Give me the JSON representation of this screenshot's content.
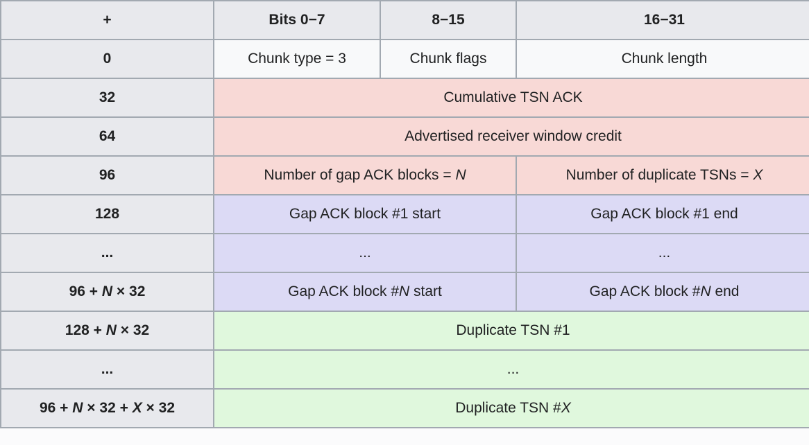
{
  "colors": {
    "border": "#a2a9b1",
    "header_bg": "#e8e9ed",
    "plain_bg": "#f8f9fa",
    "red_bg": "#f8d9d6",
    "purple_bg": "#dcdaf5",
    "green_bg": "#e0f8dd",
    "text": "#202122",
    "page_bg": "#fbfbfc"
  },
  "table": {
    "header": [
      "+",
      "Bits 0−7",
      "8−15",
      "16−31"
    ],
    "rows": [
      {
        "offset": [
          {
            "t": "0"
          }
        ],
        "cells": [
          {
            "span": 1,
            "bg": "plain",
            "segs": [
              {
                "t": "Chunk type = 3"
              }
            ]
          },
          {
            "span": 1,
            "bg": "plain",
            "segs": [
              {
                "t": "Chunk flags"
              }
            ]
          },
          {
            "span": 1,
            "bg": "plain",
            "segs": [
              {
                "t": "Chunk length"
              }
            ]
          }
        ]
      },
      {
        "offset": [
          {
            "t": "32"
          }
        ],
        "cells": [
          {
            "span": 3,
            "bg": "red",
            "segs": [
              {
                "t": "Cumulative TSN ACK"
              }
            ]
          }
        ]
      },
      {
        "offset": [
          {
            "t": "64"
          }
        ],
        "cells": [
          {
            "span": 3,
            "bg": "red",
            "segs": [
              {
                "t": "Advertised receiver window credit"
              }
            ]
          }
        ]
      },
      {
        "offset": [
          {
            "t": "96"
          }
        ],
        "cells": [
          {
            "span": 2,
            "bg": "red",
            "segs": [
              {
                "t": "Number of gap ACK blocks = "
              },
              {
                "t": "N",
                "i": true
              }
            ]
          },
          {
            "span": 1,
            "bg": "red",
            "segs": [
              {
                "t": "Number of duplicate TSNs = "
              },
              {
                "t": "X",
                "i": true
              }
            ]
          }
        ]
      },
      {
        "offset": [
          {
            "t": "128"
          }
        ],
        "cells": [
          {
            "span": 2,
            "bg": "purple",
            "segs": [
              {
                "t": "Gap ACK block #1 start"
              }
            ]
          },
          {
            "span": 1,
            "bg": "purple",
            "segs": [
              {
                "t": "Gap ACK block #1 end"
              }
            ]
          }
        ]
      },
      {
        "offset": [
          {
            "t": "..."
          }
        ],
        "cells": [
          {
            "span": 2,
            "bg": "purple",
            "segs": [
              {
                "t": "..."
              }
            ]
          },
          {
            "span": 1,
            "bg": "purple",
            "segs": [
              {
                "t": "..."
              }
            ]
          }
        ]
      },
      {
        "offset": [
          {
            "t": "96 + "
          },
          {
            "t": "N",
            "i": true
          },
          {
            "t": " × 32"
          }
        ],
        "cells": [
          {
            "span": 2,
            "bg": "purple",
            "segs": [
              {
                "t": "Gap ACK block #"
              },
              {
                "t": "N",
                "i": true
              },
              {
                "t": " start"
              }
            ]
          },
          {
            "span": 1,
            "bg": "purple",
            "segs": [
              {
                "t": "Gap ACK block #"
              },
              {
                "t": "N",
                "i": true
              },
              {
                "t": " end"
              }
            ]
          }
        ]
      },
      {
        "offset": [
          {
            "t": "128 + "
          },
          {
            "t": "N",
            "i": true
          },
          {
            "t": " × 32"
          }
        ],
        "cells": [
          {
            "span": 3,
            "bg": "green",
            "segs": [
              {
                "t": "Duplicate TSN #1"
              }
            ]
          }
        ]
      },
      {
        "offset": [
          {
            "t": "..."
          }
        ],
        "cells": [
          {
            "span": 3,
            "bg": "green",
            "segs": [
              {
                "t": "..."
              }
            ]
          }
        ]
      },
      {
        "offset": [
          {
            "t": "96 + "
          },
          {
            "t": "N",
            "i": true
          },
          {
            "t": " × 32 + "
          },
          {
            "t": "X",
            "i": true
          },
          {
            "t": " × 32"
          }
        ],
        "cells": [
          {
            "span": 3,
            "bg": "green",
            "segs": [
              {
                "t": "Duplicate TSN #"
              },
              {
                "t": "X",
                "i": true
              }
            ]
          }
        ]
      }
    ]
  }
}
